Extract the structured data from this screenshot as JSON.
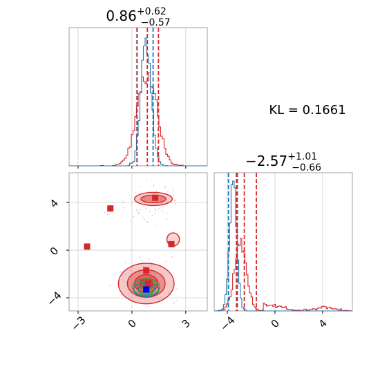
{
  "chart_data": [
    {
      "panel": "top-left marginal histogram",
      "type": "histogram",
      "parameter_axis": "x",
      "title": {
        "median": "0.86",
        "upper": "+0.62",
        "lower": "−0.57"
      },
      "xlim": [
        -3.5,
        4.2
      ],
      "series": [
        {
          "color": "#1f77b4",
          "quantiles": [
            0.28,
            1.18
          ]
        },
        {
          "color": "#d62728",
          "quantiles": [
            0.29,
            0.86,
            1.48
          ]
        }
      ],
      "colors": {
        "blue": "#1f77b4",
        "red": "#d62728"
      }
    },
    {
      "panel": "bottom-left 2D contour",
      "type": "contour",
      "xlim": [
        -3.5,
        4.2
      ],
      "ylim": [
        -5.1,
        6.5
      ],
      "x_ticks": [
        "−3",
        "0",
        "3"
      ],
      "y_ticks": [
        "−4",
        "0",
        "4"
      ],
      "grid": true,
      "red_markers": [
        [
          -1.2,
          3.5
        ],
        [
          -2.5,
          0.3
        ],
        [
          1.3,
          4.4
        ],
        [
          2.2,
          0.5
        ],
        [
          0.9,
          -2.8
        ],
        [
          0.8,
          -1.7
        ]
      ],
      "blue_markers": [
        [
          0.8,
          -3.3
        ]
      ],
      "density_centers": {
        "red_main": [
          0.8,
          -2.8
        ],
        "red_upper": [
          1.2,
          4.3
        ],
        "blue": [
          0.8,
          -3.3
        ],
        "green": [
          0.8,
          -3.1
        ]
      },
      "colors": {
        "red": "#d62728",
        "blue": "#1f77b4",
        "green": "#2ca02c"
      }
    },
    {
      "panel": "bottom-right marginal histogram",
      "type": "histogram",
      "parameter_axis": "y",
      "title": {
        "median": "−2.57",
        "upper": "+1.01",
        "lower": "−0.66"
      },
      "xlim": [
        -5.1,
        6.5
      ],
      "x_ticks": [
        "−4",
        "0",
        "4"
      ],
      "series": [
        {
          "color": "#1f77b4",
          "quantiles": [
            -3.9,
            -3.15
          ]
        },
        {
          "color": "#d62728",
          "quantiles": [
            -3.23,
            -2.57,
            -1.56
          ]
        }
      ]
    }
  ],
  "annotation": "KL = 0.1661"
}
